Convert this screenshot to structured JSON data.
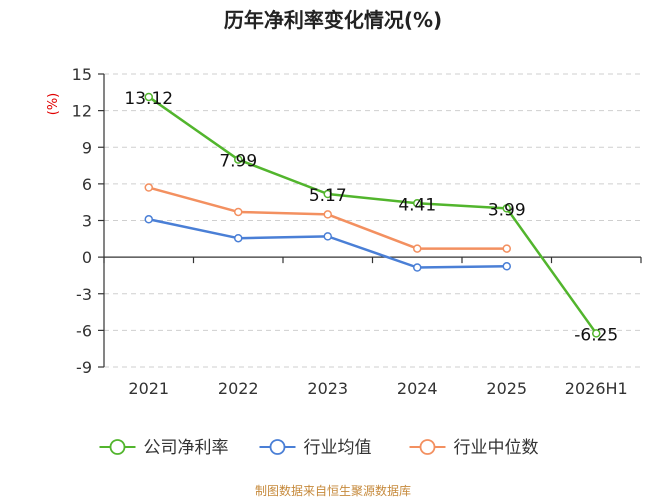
{
  "chart_data": {
    "type": "line",
    "title": "历年净利率变化情况(%)",
    "ylabel": "(%)",
    "categories": [
      "2021",
      "2022",
      "2023",
      "2024",
      "2025",
      "2026H1"
    ],
    "ylim": [
      -9,
      15
    ],
    "yticks": [
      15,
      12,
      9,
      6,
      3,
      0,
      -3,
      -6,
      -9
    ],
    "ytick_labels": [
      "15",
      "12",
      "9",
      "6",
      "3",
      "0",
      "-3",
      "-6",
      "-9"
    ],
    "grid": true,
    "legend_position": "bottom",
    "series": [
      {
        "name": "公司净利率",
        "color": "#52b52d",
        "values": [
          13.12,
          7.99,
          5.17,
          4.41,
          3.99,
          -6.25
        ],
        "labels": [
          "13.12",
          "7.99",
          "5.17",
          "4.41",
          "3.99",
          "-6.25"
        ]
      },
      {
        "name": "行业均值",
        "color": "#4a7fd6",
        "values": [
          3.1,
          1.55,
          1.7,
          -0.85,
          -0.75,
          null
        ]
      },
      {
        "name": "行业中位数",
        "color": "#f39060",
        "values": [
          5.7,
          3.7,
          3.5,
          0.7,
          0.7,
          null
        ]
      }
    ]
  },
  "source_text": "制图数据来自恒生聚源数据库"
}
